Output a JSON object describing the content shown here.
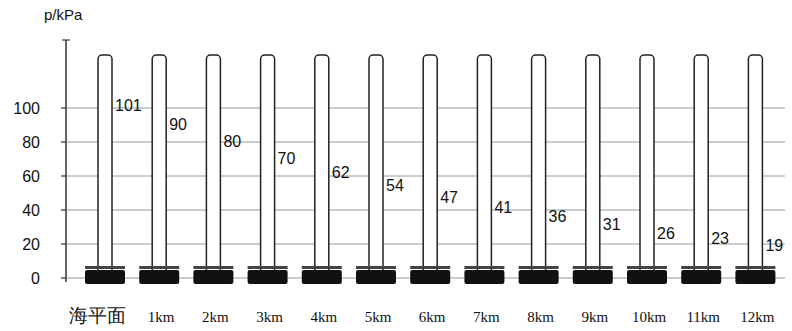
{
  "chart_data": {
    "type": "bar",
    "y_label": "p/kPa",
    "categories": [
      "海平面",
      "1km",
      "2km",
      "3km",
      "4km",
      "5km",
      "6km",
      "7km",
      "8km",
      "9km",
      "10km",
      "11km",
      "12km"
    ],
    "values": [
      101,
      90,
      80,
      70,
      62,
      54,
      47,
      41,
      36,
      31,
      26,
      23,
      19
    ],
    "color": "#111111",
    "ylim": [
      0,
      140
    ],
    "yticks": [
      0,
      20,
      40,
      60,
      80,
      100
    ],
    "grid": true,
    "data_labels": true
  }
}
